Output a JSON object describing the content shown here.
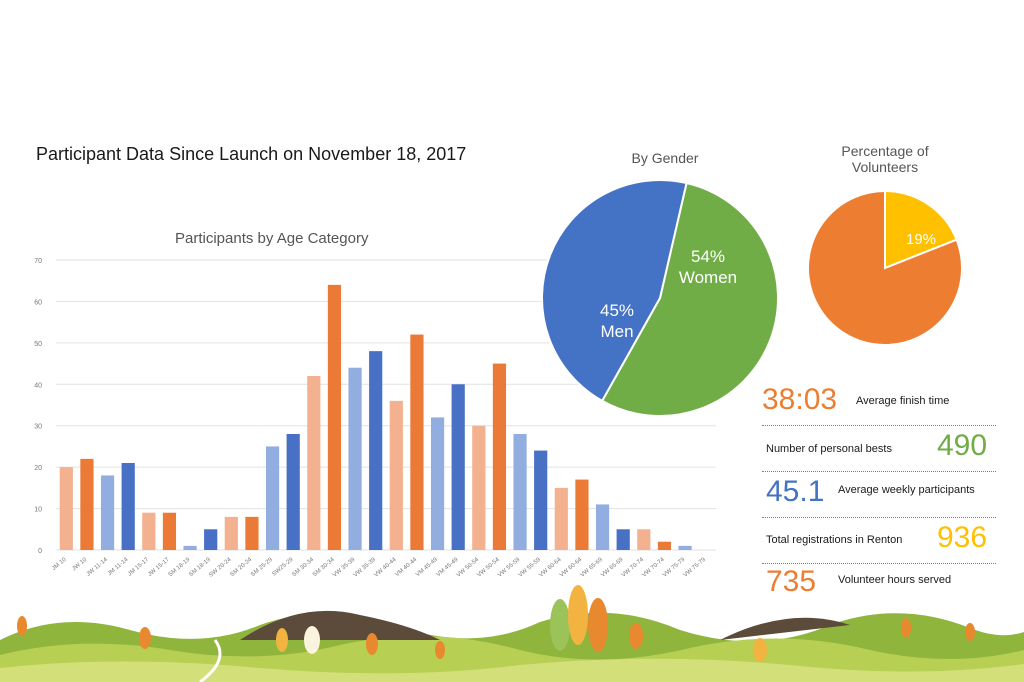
{
  "title": "Participant Data Since Launch on November 18, 2017",
  "chart_data": [
    {
      "type": "bar",
      "title": "Participants by Age Category",
      "categories": [
        "JM 10",
        "JW 10",
        "JW 11-14",
        "JM 11-14",
        "JM 15-17",
        "JW 15-17",
        "SM 18-19",
        "SM 18-19",
        "SW 20-24",
        "SM 20-24",
        "SM 25-29",
        "SW25-29",
        "SM 30-34",
        "SM 30-34",
        "VW 35-39",
        "VW 35-39",
        "VW 40-44",
        "VM 40-44",
        "VM 45-49",
        "VM 45-49",
        "VW 50-54",
        "VW 50-54",
        "VW 55-59",
        "VW 55-59",
        "VW 60-64",
        "VW 60-64",
        "VW 65-69",
        "VW 65-69",
        "VW 70-74",
        "VW 70-74",
        "VW 75-79",
        "VW 75-79"
      ],
      "values": [
        20,
        22,
        18,
        21,
        9,
        9,
        1,
        5,
        8,
        8,
        25,
        28,
        42,
        64,
        44,
        48,
        36,
        52,
        32,
        40,
        30,
        45,
        28,
        24,
        15,
        17,
        11,
        5,
        5,
        2,
        1,
        0
      ],
      "colors": [
        "#f4b18f",
        "#ea7a35",
        "#92aee0",
        "#4870c4",
        "#f4b18f",
        "#ea7a35",
        "#92aee0",
        "#4870c4",
        "#f4b18f",
        "#ea7a35",
        "#92aee0",
        "#4870c4",
        "#f4b18f",
        "#ea7a35",
        "#92aee0",
        "#4870c4",
        "#f4b18f",
        "#ea7a35",
        "#92aee0",
        "#4870c4",
        "#f4b18f",
        "#ea7a35",
        "#92aee0",
        "#4870c4",
        "#f4b18f",
        "#ea7a35",
        "#92aee0",
        "#4870c4",
        "#f4b18f",
        "#ea7a35",
        "#92aee0",
        "#4870c4"
      ],
      "ylim": [
        0,
        70
      ],
      "yticks": [
        0,
        10,
        20,
        30,
        40,
        50,
        60,
        70
      ],
      "grid": true
    },
    {
      "type": "pie",
      "title": "By Gender",
      "slices": [
        {
          "label": "Women",
          "value": 54,
          "text": "54%",
          "color": "#70ad47"
        },
        {
          "label": "Men",
          "value": 45,
          "text": "45%",
          "color": "#4472c4"
        }
      ]
    },
    {
      "type": "pie",
      "title": "Percentage of Volunteers",
      "slices": [
        {
          "label": "",
          "value": 19,
          "text": "19%",
          "color": "#ffc000"
        },
        {
          "label": "",
          "value": 81,
          "text": "",
          "color": "#ed7d31"
        }
      ]
    }
  ],
  "stats": [
    {
      "value": "38:03",
      "label": "Average finish time",
      "color": "#ed7d31"
    },
    {
      "value": "490",
      "label": "Number of personal bests",
      "color": "#70ad47"
    },
    {
      "value": "45.1",
      "label": "Average weekly participants",
      "color": "#4472c4"
    },
    {
      "value": "936",
      "label": "Total registrations in Renton",
      "color": "#ffc000"
    },
    {
      "value": "735",
      "label": "Volunteer hours served",
      "color": "#ed7d31"
    }
  ]
}
